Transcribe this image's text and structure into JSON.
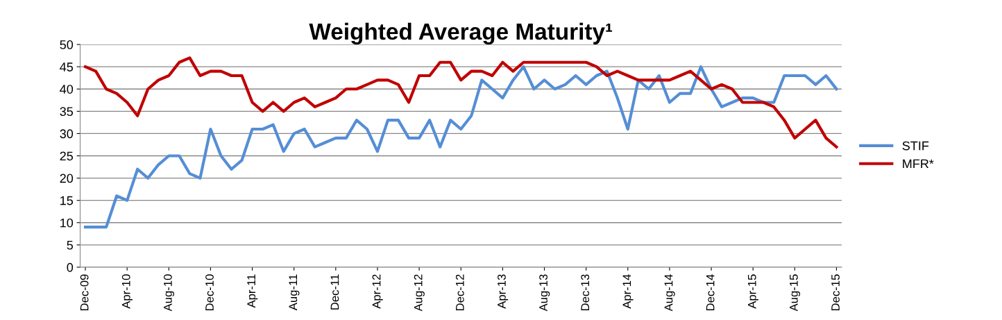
{
  "chart_data": {
    "type": "line",
    "title": "Weighted Average Maturity¹",
    "categories": [
      "Dec-09",
      null,
      null,
      null,
      "Apr-10",
      null,
      null,
      null,
      "Aug-10",
      null,
      null,
      null,
      "Dec-10",
      null,
      null,
      null,
      "Apr-11",
      null,
      null,
      null,
      "Aug-11",
      null,
      null,
      null,
      "Dec-11",
      null,
      null,
      null,
      "Apr-12",
      null,
      null,
      null,
      "Aug-12",
      null,
      null,
      null,
      "Dec-12",
      null,
      null,
      null,
      "Apr-13",
      null,
      null,
      null,
      "Aug-13",
      null,
      null,
      null,
      "Dec-13",
      null,
      null,
      null,
      "Apr-14",
      null,
      null,
      null,
      "Aug-14",
      null,
      null,
      null,
      "Dec-14",
      null,
      null,
      null,
      "Apr-15",
      null,
      null,
      null,
      "Aug-15",
      null,
      null,
      null,
      "Dec-15"
    ],
    "series": [
      {
        "name": "STIF",
        "color": "#558ed5",
        "values": [
          9,
          9,
          9,
          16,
          15,
          22,
          20,
          23,
          25,
          25,
          21,
          20,
          31,
          25,
          22,
          24,
          31,
          31,
          32,
          26,
          30,
          31,
          27,
          28,
          29,
          29,
          33,
          31,
          26,
          33,
          33,
          29,
          29,
          33,
          27,
          33,
          31,
          34,
          42,
          40,
          38,
          42,
          45,
          40,
          42,
          40,
          41,
          43,
          41,
          43,
          44,
          38,
          31,
          42,
          40,
          43,
          37,
          39,
          39,
          45,
          40,
          36,
          37,
          38,
          38,
          37,
          37,
          43,
          43,
          43,
          41,
          43,
          40
        ]
      },
      {
        "name": "MFR*",
        "color": "#c00000",
        "values": [
          45,
          44,
          40,
          39,
          37,
          34,
          40,
          42,
          43,
          46,
          47,
          43,
          44,
          44,
          43,
          43,
          37,
          35,
          37,
          35,
          37,
          38,
          36,
          37,
          38,
          40,
          40,
          41,
          42,
          42,
          41,
          37,
          43,
          43,
          46,
          46,
          42,
          44,
          44,
          43,
          46,
          44,
          46,
          46,
          46,
          46,
          46,
          46,
          46,
          45,
          43,
          44,
          43,
          42,
          42,
          42,
          42,
          43,
          44,
          42,
          40,
          41,
          40,
          37,
          37,
          37,
          36,
          33,
          29,
          31,
          33,
          29,
          27
        ]
      }
    ],
    "ylim": [
      0,
      50
    ],
    "yticks": [
      0,
      5,
      10,
      15,
      20,
      25,
      30,
      35,
      40,
      45,
      50
    ],
    "grid": "y",
    "legend": "right",
    "marker": "none",
    "line_style": "solid"
  }
}
